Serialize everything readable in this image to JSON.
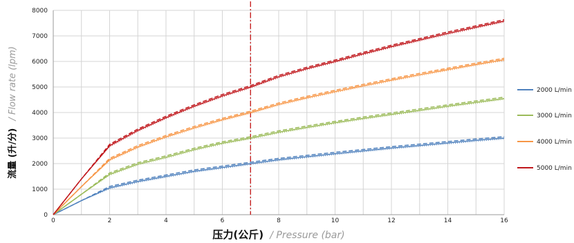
{
  "chart_data": {
    "type": "line",
    "title": "",
    "xlabel": {
      "cn": "压力(公斤)",
      "en": "/ Pressure (bar)"
    },
    "ylabel": {
      "cn": "流量 (升/分)",
      "en": "/ Flow rate (lpm)"
    },
    "xlim": [
      0,
      16
    ],
    "ylim": [
      0,
      8000
    ],
    "xticks": [
      0,
      2,
      4,
      6,
      8,
      10,
      12,
      14,
      16
    ],
    "yticks": [
      0,
      1000,
      2000,
      3000,
      4000,
      5000,
      6000,
      7000,
      8000
    ],
    "grid": true,
    "legend_position": "right",
    "reference_line": {
      "x": 7,
      "color": "#c00000",
      "style": "dash-dot"
    },
    "x": [
      0,
      1,
      2,
      3,
      4,
      5,
      6,
      7,
      8,
      9,
      10,
      11,
      12,
      13,
      14,
      15,
      16
    ],
    "series": [
      {
        "name": "2000 L/min",
        "color": "#4f81bd",
        "values": [
          0,
          550,
          1050,
          1300,
          1500,
          1700,
          1850,
          2000,
          2150,
          2270,
          2390,
          2500,
          2610,
          2710,
          2810,
          2910,
          3000
        ]
      },
      {
        "name": "3000 L/min",
        "color": "#9bbb59",
        "values": [
          0,
          800,
          1580,
          1980,
          2250,
          2550,
          2800,
          3000,
          3230,
          3420,
          3600,
          3770,
          3930,
          4090,
          4250,
          4400,
          4550
        ]
      },
      {
        "name": "4000 L/min",
        "color": "#f79646",
        "values": [
          0,
          1100,
          2150,
          2650,
          3050,
          3400,
          3720,
          4000,
          4320,
          4580,
          4820,
          5050,
          5270,
          5480,
          5680,
          5880,
          6070
        ]
      },
      {
        "name": "5000 L/min",
        "color": "#c0171c",
        "values": [
          0,
          1400,
          2700,
          3300,
          3800,
          4250,
          4650,
          5000,
          5400,
          5720,
          6000,
          6300,
          6580,
          6840,
          7100,
          7340,
          7580
        ]
      }
    ]
  }
}
